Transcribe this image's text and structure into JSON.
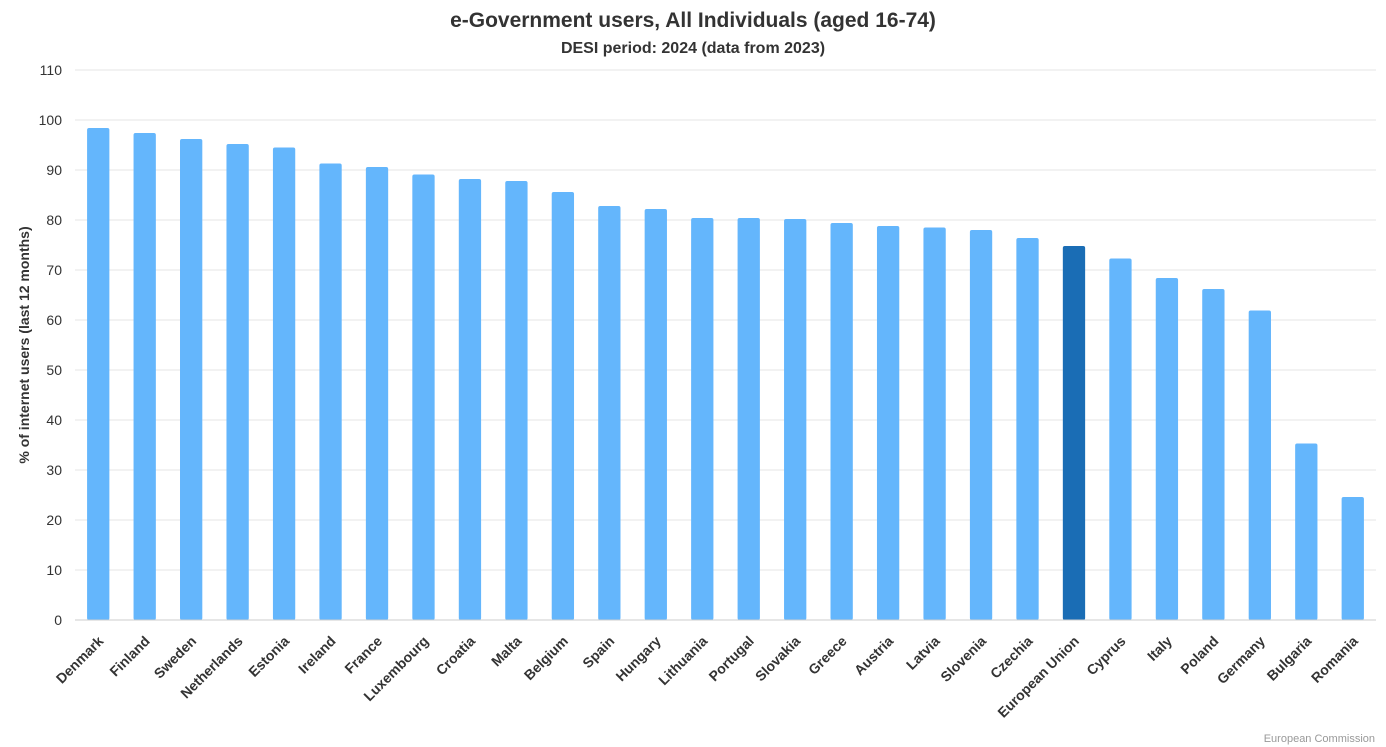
{
  "chart_data": {
    "type": "bar",
    "title": "e-Government users, All Individuals (aged 16-74)",
    "subtitle": "DESI period: 2024 (data from 2023)",
    "ylabel": "% of internet users (last 12 months)",
    "xlabel": "",
    "ylim": [
      0,
      110
    ],
    "yticks": [
      "0",
      "10",
      "20",
      "30",
      "40",
      "50",
      "60",
      "70",
      "80",
      "90",
      "100",
      "110"
    ],
    "grid": true,
    "legend": "none",
    "categories": [
      "Denmark",
      "Finland",
      "Sweden",
      "Netherlands",
      "Estonia",
      "Ireland",
      "France",
      "Luxembourg",
      "Croatia",
      "Malta",
      "Belgium",
      "Spain",
      "Hungary",
      "Lithuania",
      "Portugal",
      "Slovakia",
      "Greece",
      "Austria",
      "Latvia",
      "Slovenia",
      "Czechia",
      "European Union",
      "Cyprus",
      "Italy",
      "Poland",
      "Germany",
      "Bulgaria",
      "Romania"
    ],
    "values": [
      98.4,
      97.4,
      96.2,
      95.2,
      94.5,
      91.3,
      90.6,
      89.1,
      88.2,
      87.8,
      85.6,
      82.8,
      82.2,
      80.4,
      80.4,
      80.2,
      79.4,
      78.8,
      78.5,
      78.0,
      76.4,
      74.8,
      72.3,
      68.4,
      66.2,
      61.9,
      35.3,
      24.6
    ],
    "highlight": "European Union",
    "colors": {
      "bar": "#64b6fc",
      "highlight": "#1a6db5"
    },
    "credit": "European Commission"
  }
}
